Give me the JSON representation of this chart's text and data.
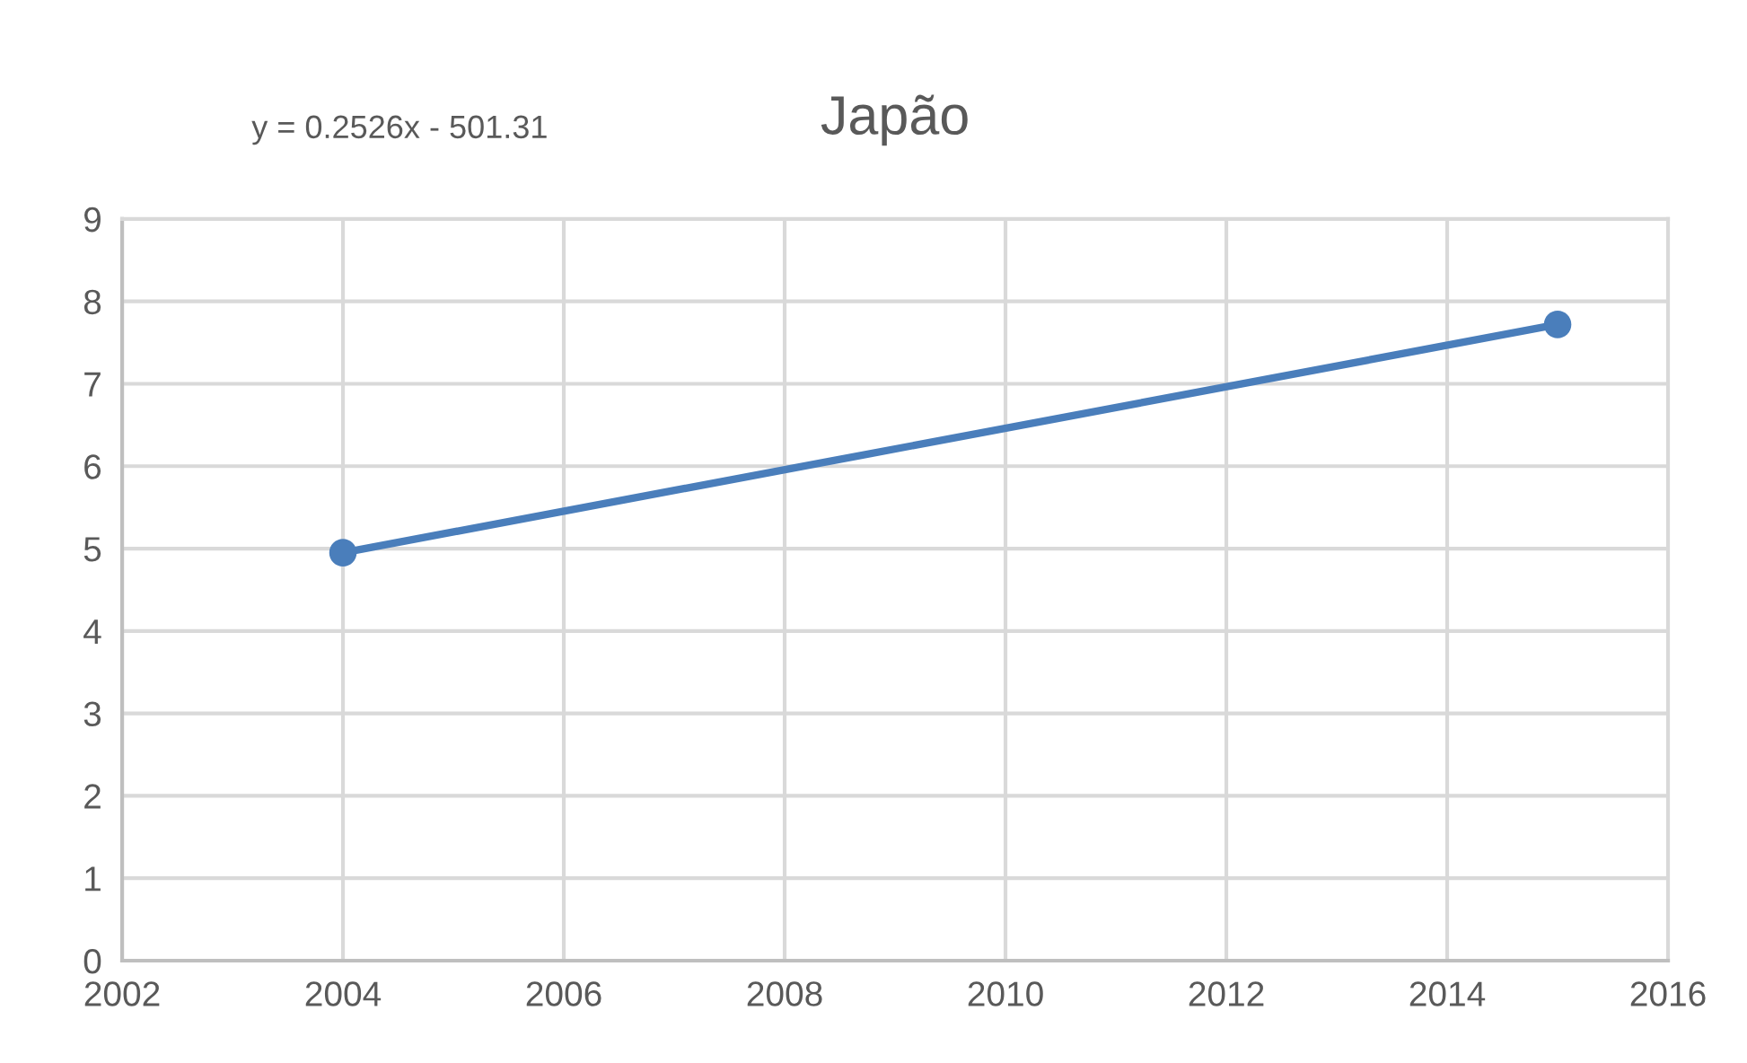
{
  "chart_data": {
    "type": "line",
    "title": "Japão",
    "annotations": [
      "y = 0.2526x - 501.31"
    ],
    "x": [
      2004,
      2015
    ],
    "series": [
      {
        "color": "#4a7ebb",
        "values": [
          4.95,
          7.72
        ]
      }
    ],
    "xlim": [
      2002,
      2016
    ],
    "xticks": [
      2002,
      2004,
      2006,
      2008,
      2010,
      2012,
      2014,
      2016
    ],
    "ylim": [
      0,
      9
    ],
    "yticks": [
      0,
      1,
      2,
      3,
      4,
      5,
      6,
      7,
      8,
      9
    ],
    "grid": true,
    "marker": "circle",
    "line_style": "solid"
  }
}
